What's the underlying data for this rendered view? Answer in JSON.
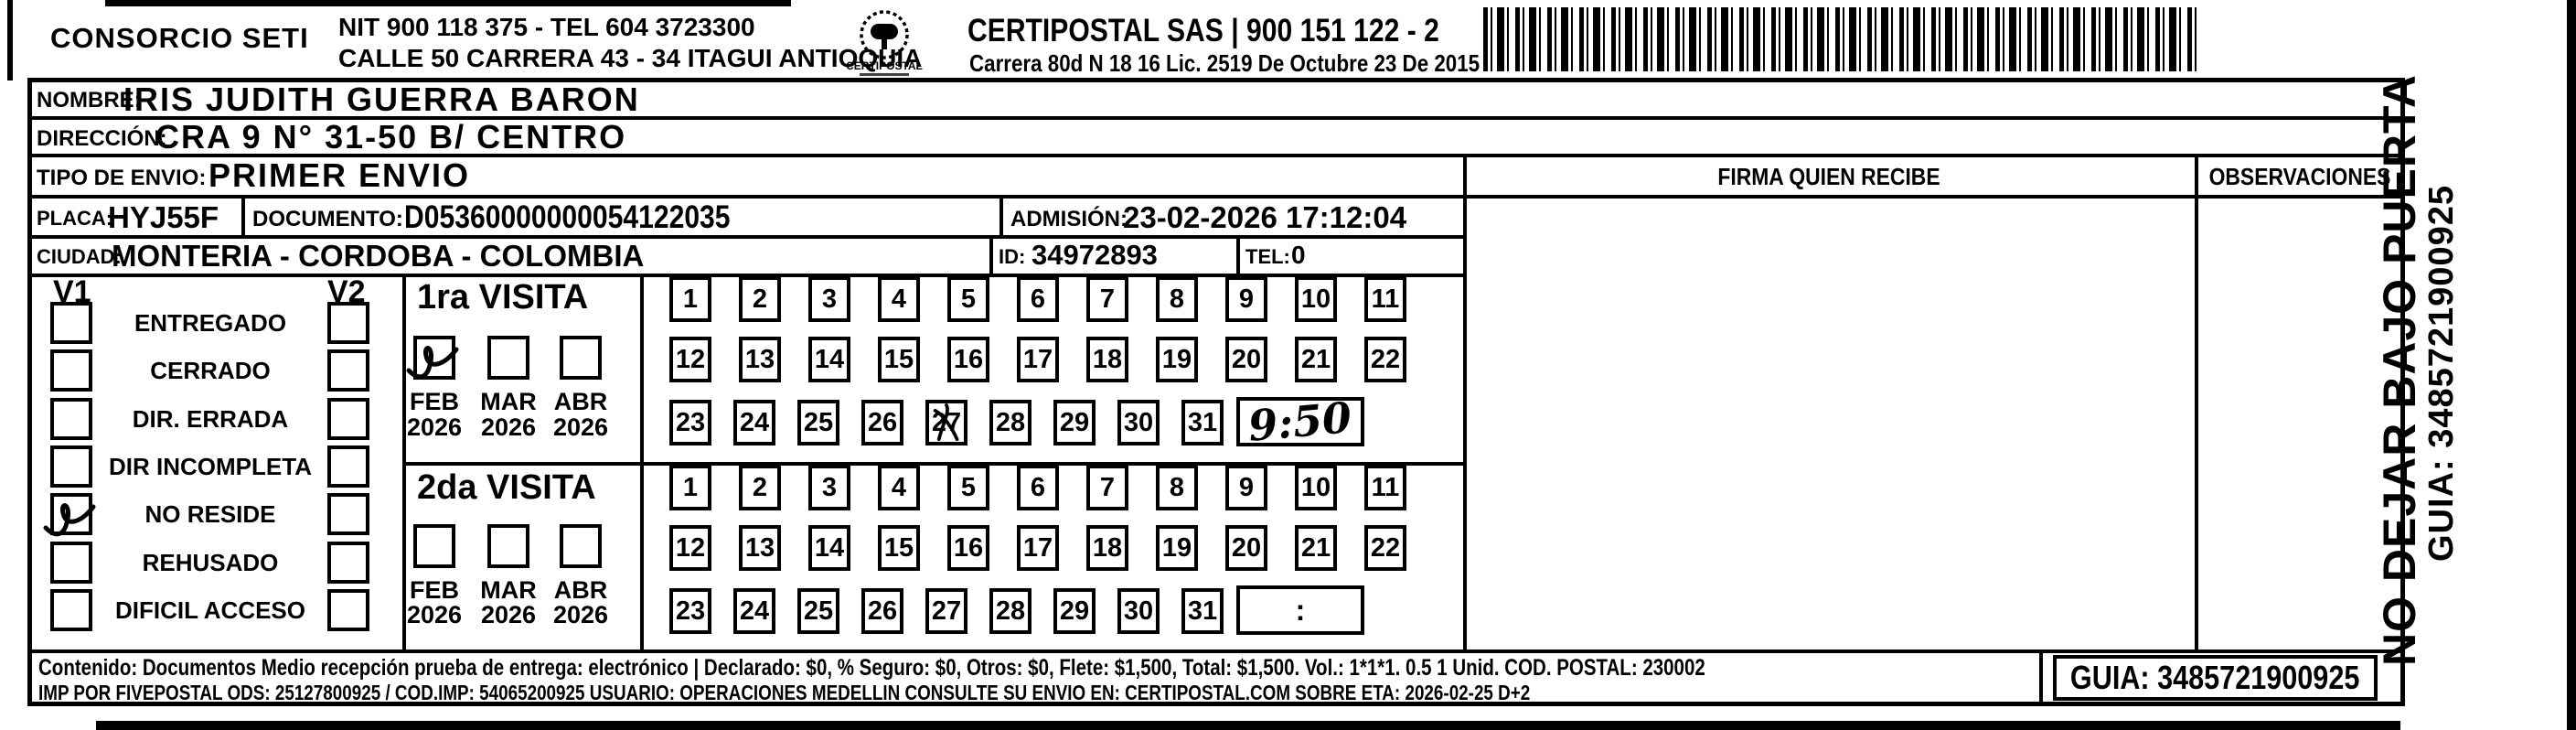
{
  "header": {
    "consorcio": "CONSORCIO SETI",
    "nit_line": "NIT 900 118 375 - TEL 604 3723300",
    "address_line": "CALLE 50 CARRERA 43 - 34 ITAGUI ANTIOQUIA",
    "logo_text": "CERTIPOSTAL",
    "company_line": "CERTIPOSTAL SAS | 900 151 122 - 2",
    "license_line": "Carrera 80d N 18 16  Lic. 2519 De Octubre 23 De 2015"
  },
  "recipient": {
    "nombre_label": "NOMBRE:",
    "nombre": "IRIS JUDITH GUERRA BARON",
    "direccion_label": "DIRECCIÓN:",
    "direccion": "CRA 9 N° 31-50 B/ CENTRO"
  },
  "shipment": {
    "tipo_label": "TIPO DE ENVIO:",
    "tipo": "PRIMER ENVIO",
    "placa_label": "PLACA:",
    "placa": "HYJ55F",
    "documento_label": "DOCUMENTO:",
    "documento": "D05360000000054122035",
    "admision_label": "ADMISIÓN:",
    "admision": "23-02-2026 17:12:04",
    "ciudad_label": "CIUDAD:",
    "ciudad": "MONTERIA - CORDOBA - COLOMBIA",
    "id_label": "ID:",
    "id": "34972893",
    "tel_label": "TEL:",
    "tel": "0"
  },
  "columns": {
    "firma": "FIRMA QUIEN RECIBE",
    "observaciones": "OBSERVACIONES"
  },
  "status": {
    "v1_label": "V1",
    "v2_label": "V2",
    "options": [
      "ENTREGADO",
      "CERRADO",
      "DIR. ERRADA",
      "DIR INCOMPLETA",
      "NO RESIDE",
      "REHUSADO",
      "DIFICIL ACCESO"
    ],
    "v1_checked": "NO RESIDE",
    "v2_checked": ""
  },
  "visit1": {
    "title": "1ra VISITA",
    "months": [
      {
        "label": "FEB",
        "year": "2026",
        "checked": true
      },
      {
        "label": "MAR",
        "year": "2026",
        "checked": false
      },
      {
        "label": "ABR",
        "year": "2026",
        "checked": false
      }
    ],
    "day_rows": [
      [
        1,
        2,
        3,
        4,
        5,
        6,
        7,
        8,
        9,
        10,
        11
      ],
      [
        12,
        13,
        14,
        15,
        16,
        17,
        18,
        19,
        20,
        21,
        22
      ],
      [
        23,
        24,
        25,
        26,
        27,
        28,
        29,
        30,
        31
      ]
    ],
    "marked_day": 27,
    "time": "9:50",
    "time_handwritten": true
  },
  "visit2": {
    "title": "2da VISITA",
    "months": [
      {
        "label": "FEB",
        "year": "2026",
        "checked": false
      },
      {
        "label": "MAR",
        "year": "2026",
        "checked": false
      },
      {
        "label": "ABR",
        "year": "2026",
        "checked": false
      }
    ],
    "day_rows": [
      [
        1,
        2,
        3,
        4,
        5,
        6,
        7,
        8,
        9,
        10,
        11
      ],
      [
        12,
        13,
        14,
        15,
        16,
        17,
        18,
        19,
        20,
        21,
        22
      ],
      [
        23,
        24,
        25,
        26,
        27,
        28,
        29,
        30,
        31
      ]
    ],
    "marked_day": null,
    "time": ":",
    "time_handwritten": false
  },
  "side": {
    "warning": "NO DEJAR BAJO PUERTA",
    "guia": "GUIA: 3485721900925"
  },
  "footer": {
    "line1": "Contenido: Documentos Medio recepción prueba de entrega: electrónico | Declarado: $0, % Seguro: $0, Otros: $0, Flete: $1,500, Total: $1,500. Vol.: 1*1*1. 0.5  1 Unid. COD. POSTAL: 230002",
    "line2": "IMP POR FIVEPOSTAL ODS: 25127800925 / COD.IMP: 54065200925 USUARIO: OPERACIONES MEDELLIN CONSULTE SU ENVIO EN: CERTIPOSTAL.COM SOBRE ETA: 2026-02-25 D+2",
    "guia_box": "GUIA: 3485721900925"
  }
}
